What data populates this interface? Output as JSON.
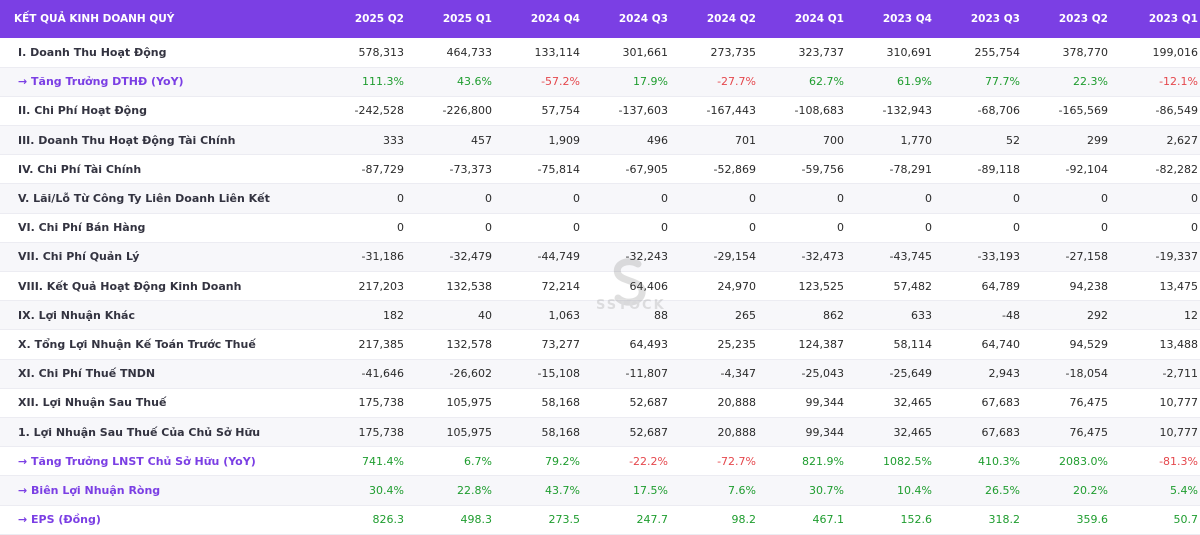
{
  "table": {
    "header_label": "KẾT QUẢ KINH DOANH QUÝ",
    "columns": [
      "2025 Q2",
      "2025 Q1",
      "2024 Q4",
      "2024 Q3",
      "2024 Q2",
      "2024 Q1",
      "2023 Q4",
      "2023 Q3",
      "2023 Q2",
      "2023 Q1"
    ],
    "rows": [
      {
        "label": "I. Doanh Thu Hoạt Động",
        "metric": false,
        "values": [
          "578,313",
          "464,733",
          "133,114",
          "301,661",
          "273,735",
          "323,737",
          "310,691",
          "255,754",
          "378,770",
          "199,016"
        ]
      },
      {
        "label": "→ Tăng Trưởng DTHĐ (YoY)",
        "metric": true,
        "values": [
          "111.3%",
          "43.6%",
          "-57.2%",
          "17.9%",
          "-27.7%",
          "62.7%",
          "61.9%",
          "77.7%",
          "22.3%",
          "-12.1%"
        ]
      },
      {
        "label": "II. Chi Phí Hoạt Động",
        "metric": false,
        "values": [
          "-242,528",
          "-226,800",
          "57,754",
          "-137,603",
          "-167,443",
          "-108,683",
          "-132,943",
          "-68,706",
          "-165,569",
          "-86,549"
        ]
      },
      {
        "label": "III. Doanh Thu Hoạt Động Tài Chính",
        "metric": false,
        "values": [
          "333",
          "457",
          "1,909",
          "496",
          "701",
          "700",
          "1,770",
          "52",
          "299",
          "2,627"
        ]
      },
      {
        "label": "IV. Chi Phí Tài Chính",
        "metric": false,
        "values": [
          "-87,729",
          "-73,373",
          "-75,814",
          "-67,905",
          "-52,869",
          "-59,756",
          "-78,291",
          "-89,118",
          "-92,104",
          "-82,282"
        ]
      },
      {
        "label": "V. Lãi/Lỗ Từ Công Ty Liên Doanh Liên Kết",
        "metric": false,
        "values": [
          "0",
          "0",
          "0",
          "0",
          "0",
          "0",
          "0",
          "0",
          "0",
          "0"
        ]
      },
      {
        "label": "VI. Chi Phí Bán Hàng",
        "metric": false,
        "values": [
          "0",
          "0",
          "0",
          "0",
          "0",
          "0",
          "0",
          "0",
          "0",
          "0"
        ]
      },
      {
        "label": "VII. Chi Phí Quản Lý",
        "metric": false,
        "values": [
          "-31,186",
          "-32,479",
          "-44,749",
          "-32,243",
          "-29,154",
          "-32,473",
          "-43,745",
          "-33,193",
          "-27,158",
          "-19,337"
        ]
      },
      {
        "label": "VIII. Kết Quả Hoạt Động Kinh Doanh",
        "metric": false,
        "values": [
          "217,203",
          "132,538",
          "72,214",
          "64,406",
          "24,970",
          "123,525",
          "57,482",
          "64,789",
          "94,238",
          "13,475"
        ]
      },
      {
        "label": "IX. Lợi Nhuận Khác",
        "metric": false,
        "values": [
          "182",
          "40",
          "1,063",
          "88",
          "265",
          "862",
          "633",
          "-48",
          "292",
          "12"
        ]
      },
      {
        "label": "X. Tổng Lợi Nhuận Kế Toán Trước Thuế",
        "metric": false,
        "values": [
          "217,385",
          "132,578",
          "73,277",
          "64,493",
          "25,235",
          "124,387",
          "58,114",
          "64,740",
          "94,529",
          "13,488"
        ]
      },
      {
        "label": "XI. Chi Phí Thuế TNDN",
        "metric": false,
        "values": [
          "-41,646",
          "-26,602",
          "-15,108",
          "-11,807",
          "-4,347",
          "-25,043",
          "-25,649",
          "2,943",
          "-18,054",
          "-2,711"
        ]
      },
      {
        "label": "XII. Lợi Nhuận Sau Thuế",
        "metric": false,
        "values": [
          "175,738",
          "105,975",
          "58,168",
          "52,687",
          "20,888",
          "99,344",
          "32,465",
          "67,683",
          "76,475",
          "10,777"
        ]
      },
      {
        "label": "1. Lợi Nhuận Sau Thuế Của Chủ Sở Hữu",
        "metric": false,
        "values": [
          "175,738",
          "105,975",
          "58,168",
          "52,687",
          "20,888",
          "99,344",
          "32,465",
          "67,683",
          "76,475",
          "10,777"
        ]
      },
      {
        "label": "→ Tăng Trưởng LNST Chủ Sở Hữu (YoY)",
        "metric": true,
        "values": [
          "741.4%",
          "6.7%",
          "79.2%",
          "-22.2%",
          "-72.7%",
          "821.9%",
          "1082.5%",
          "410.3%",
          "2083.0%",
          "-81.3%"
        ]
      },
      {
        "label": "→ Biên Lợi Nhuận Ròng",
        "metric": true,
        "values": [
          "30.4%",
          "22.8%",
          "43.7%",
          "17.5%",
          "7.6%",
          "30.7%",
          "10.4%",
          "26.5%",
          "20.2%",
          "5.4%"
        ]
      },
      {
        "label": "→ EPS (Đồng)",
        "metric": true,
        "values": [
          "826.3",
          "498.3",
          "273.5",
          "247.7",
          "98.2",
          "467.1",
          "152.6",
          "318.2",
          "359.6",
          "50.7"
        ]
      }
    ]
  },
  "watermark": {
    "text": "SSTOCK"
  },
  "colors": {
    "header_bg": "#7b3fe4",
    "positive": "#1f9d2f",
    "negative": "#e5484d",
    "metric_label": "#7b3fe4"
  }
}
